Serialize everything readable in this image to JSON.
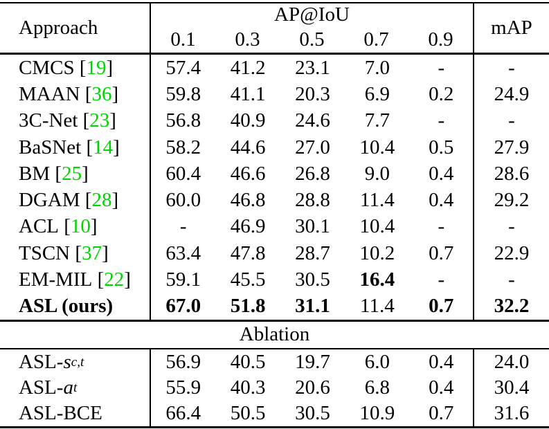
{
  "table": {
    "citation_color": "#00D400",
    "header": {
      "approach": "Approach",
      "ap_group": "AP@IoU",
      "iou_thresholds": [
        "0.1",
        "0.3",
        "0.5",
        "0.7",
        "0.9"
      ],
      "map": "mAP"
    },
    "main_rows": [
      {
        "label": "CMCS",
        "cite": "19",
        "values": [
          "57.4",
          "41.2",
          "23.1",
          "7.0",
          "-",
          "-"
        ]
      },
      {
        "label": "MAAN",
        "cite": "36",
        "values": [
          "59.8",
          "41.1",
          "20.3",
          "6.9",
          "0.2",
          "24.9"
        ]
      },
      {
        "label": "3C-Net",
        "cite": "23",
        "values": [
          "56.8",
          "40.9",
          "24.6",
          "7.7",
          "-",
          "-"
        ]
      },
      {
        "label": "BaSNet",
        "cite": "14",
        "values": [
          "58.2",
          "44.6",
          "27.0",
          "10.4",
          "0.5",
          "27.9"
        ]
      },
      {
        "label": "BM",
        "cite": "25",
        "values": [
          "60.4",
          "46.6",
          "26.8",
          "9.0",
          "0.4",
          "28.6"
        ]
      },
      {
        "label": "DGAM",
        "cite": "28",
        "values": [
          "60.0",
          "46.8",
          "28.8",
          "11.4",
          "0.4",
          "29.2"
        ]
      },
      {
        "label": "ACL",
        "cite": "10",
        "values": [
          "-",
          "46.9",
          "30.1",
          "10.4",
          "-",
          "-"
        ]
      },
      {
        "label": "TSCN",
        "cite": "37",
        "values": [
          "63.4",
          "47.8",
          "28.7",
          "10.2",
          "0.7",
          "22.9"
        ]
      },
      {
        "label": "EM-MIL",
        "cite": "22",
        "values": [
          "59.1",
          "45.5",
          "30.5",
          "16.4",
          "-",
          "-"
        ],
        "bold_values": [
          false,
          false,
          false,
          true,
          false,
          false
        ]
      },
      {
        "label": "ASL (ours)",
        "bold_label": true,
        "values": [
          "67.0",
          "51.8",
          "31.1",
          "11.4",
          "0.7",
          "32.2"
        ],
        "bold_values": [
          true,
          true,
          true,
          false,
          true,
          true
        ]
      }
    ],
    "ablation_label": "Ablation",
    "ablation_rows": [
      {
        "label": "ASL-",
        "math": "s",
        "subscript": "c,t",
        "values": [
          "56.9",
          "40.5",
          "19.7",
          "6.0",
          "0.4",
          "24.0"
        ]
      },
      {
        "label": "ASL-",
        "math": "a",
        "subscript": "t",
        "values": [
          "55.9",
          "40.3",
          "20.6",
          "6.8",
          "0.4",
          "30.4"
        ]
      },
      {
        "label": "ASL-BCE",
        "values": [
          "66.4",
          "50.5",
          "30.5",
          "10.9",
          "0.7",
          "31.6"
        ]
      }
    ]
  }
}
